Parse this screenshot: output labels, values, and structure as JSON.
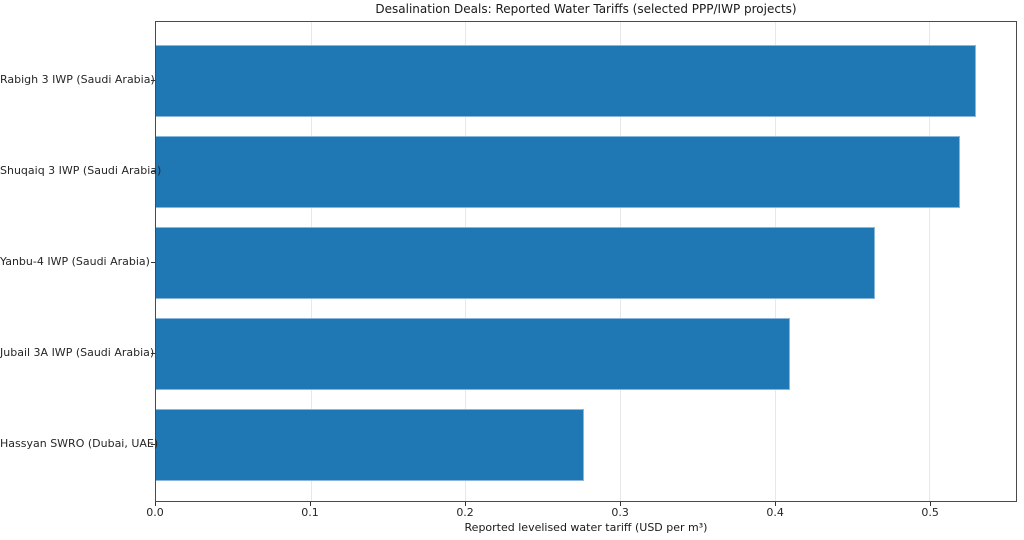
{
  "chart_data": {
    "type": "bar",
    "orientation": "horizontal",
    "title": "Desalination Deals: Reported Water Tariffs (selected PPP/IWP projects)",
    "xlabel": "Reported levelised water tariff (USD per m³)",
    "ylabel": "",
    "categories": [
      "Rabigh 3 IWP (Saudi Arabia)",
      "Shuqaiq 3 IWP (Saudi Arabia)",
      "Yanbu-4 IWP (Saudi Arabia)",
      "Jubail 3A IWP (Saudi Arabia)",
      "Hassyan SWRO (Dubai, UAE)"
    ],
    "values": [
      0.53,
      0.52,
      0.465,
      0.41,
      0.277
    ],
    "xlim": [
      0,
      0.556
    ],
    "xticks": [
      0.0,
      0.1,
      0.2,
      0.3,
      0.4,
      0.5
    ],
    "xtick_labels": [
      "0.0",
      "0.1",
      "0.2",
      "0.3",
      "0.4",
      "0.5"
    ],
    "grid": "x",
    "legend": null,
    "colors": {
      "bar_fill": "#1f77b4",
      "bar_edge": "#8ab6dc",
      "grid_line": "#e8e8e8",
      "spine": "#4a4a4a",
      "text": "#262626"
    }
  }
}
